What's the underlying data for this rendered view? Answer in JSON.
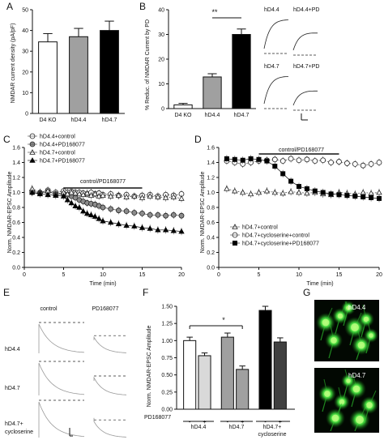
{
  "chart_data": [
    {
      "panel": "A",
      "type": "bar",
      "ylabel": "NMDAR current density (pA/pF)",
      "categories": [
        "D4 KO",
        "hD4.4",
        "hD4.7"
      ],
      "values": [
        34.5,
        37.0,
        40.0
      ],
      "errors": [
        4.0,
        4.0,
        4.5
      ],
      "fills": [
        "#ffffff",
        "#a0a0a0",
        "#000000"
      ],
      "ylim": [
        0,
        50
      ],
      "yticks": [
        "0",
        "10",
        "20",
        "30",
        "40",
        "50"
      ]
    },
    {
      "panel": "B",
      "type": "bar",
      "ylabel": "% Reduc. of NMDAR Current by PD",
      "categories": [
        "D4 KO",
        "hD4.4",
        "hD4.7"
      ],
      "values": [
        1.5,
        12.8,
        30.0
      ],
      "errors": [
        0.6,
        1.3,
        2.2
      ],
      "fills": [
        "#ffffff",
        "#a0a0a0",
        "#000000"
      ],
      "ylim": [
        0,
        40
      ],
      "yticks": [
        "0",
        "10",
        "20",
        "30",
        "40"
      ],
      "significance": "**",
      "trace_labels": [
        "hD4.4",
        "hD4.4+PD",
        "hD4.7",
        "hD4.7+PD"
      ]
    },
    {
      "panel": "C",
      "type": "line",
      "ylabel": "Norm. NMDAR-EPSC Amplitude",
      "xlabel": "Time (min)",
      "xlim": [
        0,
        20
      ],
      "ylim": [
        0,
        1.6
      ],
      "xticks": [
        "0",
        "5",
        "10",
        "15",
        "20"
      ],
      "yticks": [
        "0.0",
        "0.2",
        "0.4",
        "0.6",
        "0.8",
        "1.0",
        "1.2",
        "1.4",
        "1.6"
      ],
      "bar_label": "control/PD168077",
      "bar_range": [
        5,
        15
      ],
      "x": [
        1,
        2,
        3,
        4,
        5,
        5.5,
        6,
        6.5,
        7,
        7.5,
        8,
        8.5,
        9,
        9.5,
        10,
        11,
        12,
        13,
        14,
        15,
        16,
        17,
        18,
        19,
        20
      ],
      "series": [
        {
          "name": "hD4.4+control",
          "marker": "circle-open",
          "values": [
            1.02,
            1.0,
            1.03,
            1.0,
            1.02,
            1.0,
            1.01,
            1.0,
            1.0,
            0.99,
            0.98,
            1.0,
            0.98,
            0.99,
            0.97,
            0.98,
            0.96,
            0.97,
            0.95,
            0.96,
            0.97,
            0.95,
            0.97,
            0.96,
            0.98
          ]
        },
        {
          "name": "hD4.4+PD168077",
          "marker": "circle-gray",
          "values": [
            1.0,
            0.99,
            1.01,
            0.98,
            0.98,
            0.97,
            0.95,
            0.93,
            0.9,
            0.88,
            0.86,
            0.85,
            0.84,
            0.82,
            0.8,
            0.78,
            0.76,
            0.75,
            0.73,
            0.72,
            0.7,
            0.7,
            0.69,
            0.7,
            0.69
          ]
        },
        {
          "name": "hD4.7+control",
          "marker": "triangle-open",
          "values": [
            1.05,
            1.0,
            1.02,
            0.98,
            1.0,
            0.98,
            1.0,
            0.99,
            0.98,
            0.97,
            0.99,
            0.96,
            0.98,
            0.95,
            0.96,
            0.95,
            0.96,
            0.94,
            0.95,
            0.93,
            0.95,
            0.94,
            0.93,
            0.94,
            0.92
          ]
        },
        {
          "name": "hD4.7+PD168077",
          "marker": "triangle-filled",
          "values": [
            1.0,
            0.98,
            0.97,
            0.96,
            0.95,
            0.9,
            0.86,
            0.82,
            0.8,
            0.75,
            0.72,
            0.7,
            0.68,
            0.65,
            0.62,
            0.6,
            0.58,
            0.56,
            0.55,
            0.53,
            0.52,
            0.5,
            0.5,
            0.49,
            0.48
          ]
        }
      ]
    },
    {
      "panel": "D",
      "type": "line",
      "ylabel": "Norm. NMDAR-EPSC Amplitude",
      "xlabel": "Time (min)",
      "xlim": [
        0,
        20
      ],
      "ylim": [
        0,
        1.6
      ],
      "xticks": [
        "0",
        "5",
        "10",
        "15",
        "20"
      ],
      "yticks": [
        "0.0",
        "0.2",
        "0.4",
        "0.6",
        "0.8",
        "1.0",
        "1.2",
        "1.4",
        "1.6"
      ],
      "bar_label": "control/PD168077",
      "bar_range": [
        5,
        15
      ],
      "x": [
        1,
        2,
        3,
        4,
        5,
        6,
        7,
        8,
        9,
        10,
        11,
        12,
        13,
        14,
        15,
        16,
        17,
        18,
        19,
        20
      ],
      "series": [
        {
          "name": "hD4.7+control",
          "marker": "triangle-open",
          "values": [
            1.05,
            1.02,
            1.0,
            0.98,
            1.0,
            1.02,
            1.0,
            0.99,
            1.01,
            1.0,
            0.99,
            1.0,
            0.98,
            0.97,
            1.0,
            0.99,
            0.98,
            1.0,
            0.99,
            1.0
          ]
        },
        {
          "name": "hD4.7+cycloserine+control",
          "marker": "circle-open",
          "values": [
            1.42,
            1.4,
            1.38,
            1.4,
            1.42,
            1.43,
            1.44,
            1.42,
            1.45,
            1.43,
            1.44,
            1.42,
            1.43,
            1.4,
            1.41,
            1.39,
            1.38,
            1.36,
            1.38,
            1.4
          ]
        },
        {
          "name": "hD4.7+cycloserine+PD168077",
          "marker": "square-filled",
          "values": [
            1.45,
            1.44,
            1.43,
            1.45,
            1.44,
            1.42,
            1.35,
            1.25,
            1.15,
            1.08,
            1.05,
            1.02,
            1.0,
            0.98,
            0.97,
            0.96,
            0.95,
            0.94,
            0.93,
            0.92
          ]
        }
      ]
    },
    {
      "panel": "F",
      "type": "bar",
      "ylabel": "Norm. NMDAR-EPSC Amplitude",
      "ylim": [
        0,
        1.5
      ],
      "yticks": [
        "0.00",
        "0.25",
        "0.50",
        "0.75",
        "1.00",
        "1.25",
        "1.50"
      ],
      "categories": [
        "-",
        "+",
        "-",
        "+",
        "-",
        "+"
      ],
      "values": [
        1.0,
        0.78,
        1.05,
        0.58,
        1.44,
        0.98
      ],
      "errors": [
        0.05,
        0.04,
        0.06,
        0.05,
        0.06,
        0.06
      ],
      "fills": [
        "#ffffff",
        "#d9d9d9",
        "#a0a0a0",
        "#a0a0a0",
        "#000000",
        "#404040"
      ],
      "row_label": "PD168077",
      "groups": [
        "hD4.4",
        "hD4.7",
        "hD4.7+ cycloserine"
      ],
      "significance": "*"
    }
  ],
  "panels": {
    "a": "A",
    "b": "B",
    "c": "C",
    "d": "D",
    "e": "E",
    "f": "F",
    "g": "G"
  },
  "panel_e": {
    "col_labels": [
      "control",
      "PD168077"
    ],
    "row_labels": [
      "hD4.4",
      "hD4.7",
      "hD4.7+",
      "cycloserine"
    ]
  },
  "panel_g": {
    "image_labels": [
      "hD4.4",
      "hD4.7"
    ]
  }
}
